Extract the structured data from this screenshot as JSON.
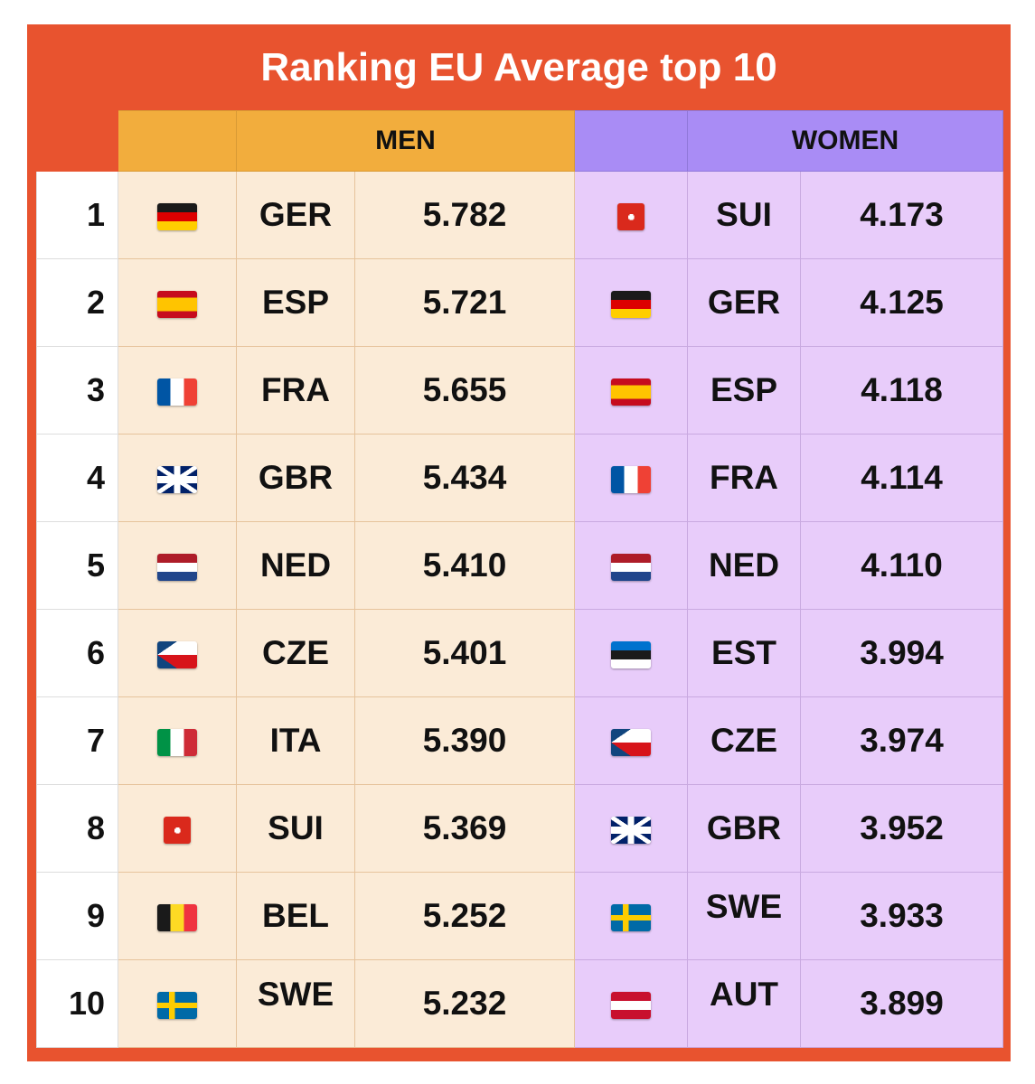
{
  "title": "Ranking EU Average top 10",
  "headers": {
    "men": "MEN",
    "women": "WOMEN"
  },
  "flag_styles": {
    "GER": "linear-gradient(to bottom,#1a1a1a 0 33.3%,#dd0000 33.3% 66.6%,#ffce00 66.6%)",
    "ESP": "linear-gradient(to bottom,#c60b1e 0 25%,#ffc400 25% 75%,#c60b1e 75%)",
    "FRA": "linear-gradient(to right,#0055a4 0 33.3%,#ffffff 33.3% 66.6%,#ef4135 66.6%)",
    "GBR": "linear-gradient(to right,transparent 42%,#ffffff 42% 58%,transparent 58%),linear-gradient(to bottom,transparent 36%,#ffffff 36% 64%,transparent 64%),linear-gradient(to right,transparent 45%,#c8102e 45% 55%,transparent 55%),linear-gradient(to bottom,transparent 42%,#c8102e 42% 58%,transparent 58%),linear-gradient(34deg,transparent 45%,#ffffff 45% 55%,transparent 55%),linear-gradient(-34deg,transparent 45%,#ffffff 45% 55%,transparent 55%),#012169",
    "NED": "linear-gradient(to bottom,#ae1c28 0 33.3%,#ffffff 33.3% 66.6%,#21468b 66.6%)",
    "CZE": "linear-gradient(to bottom right,#11457e 0 50%,transparent 50%) top left/50% 50% no-repeat,linear-gradient(to top right,#11457e 0 50%,transparent 50%) bottom left/50% 50% no-repeat,linear-gradient(to bottom,#ffffff 0 50%,#d7141a 50%)",
    "ITA": "linear-gradient(to right,#009246 0 33.3%,#ffffff 33.3% 66.6%,#ce2b37 66.6%)",
    "SUI": "linear-gradient(to right,transparent 40%,#ffffff 40% 60%,transparent 60%) center/70% 22% no-repeat,linear-gradient(to bottom,transparent 40%,#ffffff 40% 60%,transparent 60%) center/22% 70% no-repeat,#da291c",
    "BEL": "linear-gradient(to right,#1a1a1a 0 33.3%,#fdda24 33.3% 66.6%,#ef3340 66.6%)",
    "SWE": "linear-gradient(to right,transparent 30%,#fecc00 30% 44%,transparent 44%),linear-gradient(to bottom,transparent 40%,#fecc00 40% 60%,transparent 60%),#006aa7",
    "EST": "linear-gradient(to bottom,#0072ce 0 33.3%,#1a1a1a 33.3% 66.6%,#ffffff 66.6%)",
    "AUT": "linear-gradient(to bottom,#c8102e 0 33.3%,#ffffff 33.3% 66.6%,#c8102e 66.6%)"
  },
  "rows": [
    {
      "rank": "1",
      "men_code": "GER",
      "men_value": "5.782",
      "women_code": "SUI",
      "women_value": "4.173"
    },
    {
      "rank": "2",
      "men_code": "ESP",
      "men_value": "5.721",
      "women_code": "GER",
      "women_value": "4.125"
    },
    {
      "rank": "3",
      "men_code": "FRA",
      "men_value": "5.655",
      "women_code": "ESP",
      "women_value": "4.118"
    },
    {
      "rank": "4",
      "men_code": "GBR",
      "men_value": "5.434",
      "women_code": "FRA",
      "women_value": "4.114"
    },
    {
      "rank": "5",
      "men_code": "NED",
      "men_value": "5.410",
      "women_code": "NED",
      "women_value": "4.110"
    },
    {
      "rank": "6",
      "men_code": "CZE",
      "men_value": "5.401",
      "women_code": "EST",
      "women_value": "3.994"
    },
    {
      "rank": "7",
      "men_code": "ITA",
      "men_value": "5.390",
      "women_code": "CZE",
      "women_value": "3.974"
    },
    {
      "rank": "8",
      "men_code": "SUI",
      "men_value": "5.369",
      "women_code": "GBR",
      "women_value": "3.952"
    },
    {
      "rank": "9",
      "men_code": "BEL",
      "men_value": "5.252",
      "women_code": "SWE",
      "women_value": "3.933"
    },
    {
      "rank": "10",
      "men_code": "SWE",
      "men_value": "5.232",
      "women_code": "AUT",
      "women_value": "3.899"
    }
  ]
}
